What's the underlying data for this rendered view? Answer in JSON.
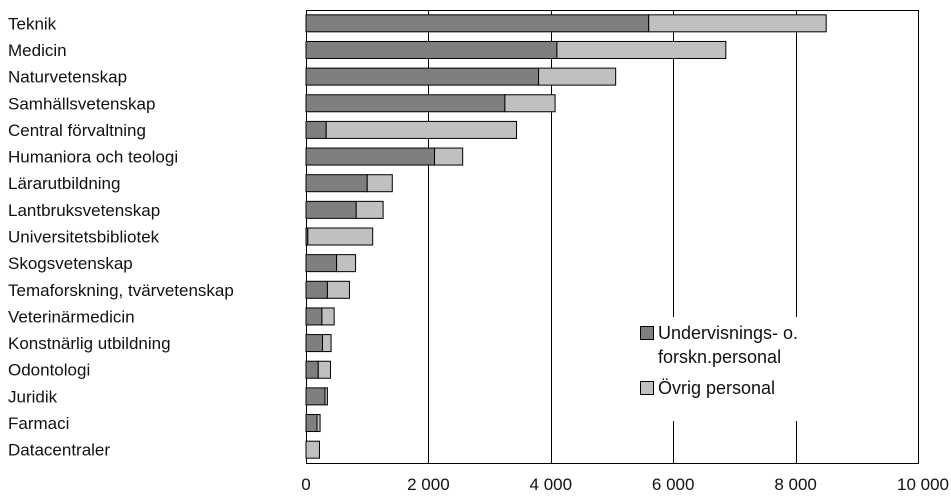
{
  "chart_data": {
    "type": "bar",
    "orientation": "horizontal",
    "stacked": true,
    "categories": [
      "Teknik",
      "Medicin",
      "Naturvetenskap",
      "Samhällsvetenskap",
      "Central förvaltning",
      "Humaniora och teologi",
      "Lärarutbildning",
      "Lantbruksvetenskap",
      "Universitetsbibliotek",
      "Skogsvetenskap",
      "Temaforskning, tvärvetenskap",
      "Veterinärmedicin",
      "Konstnärlig utbildning",
      "Odontologi",
      "Juridik",
      "Farmaci",
      "Datacentraler"
    ],
    "series": [
      {
        "name": "Undervisnings- o. forskn.personal",
        "color": "#7f7f7f",
        "values": [
          5600,
          4100,
          3800,
          3250,
          330,
          2100,
          1000,
          820,
          30,
          500,
          350,
          260,
          270,
          200,
          310,
          180,
          0
        ]
      },
      {
        "name": "Övrig personal",
        "color": "#c0c0c0",
        "values": [
          2900,
          2760,
          1260,
          820,
          3110,
          460,
          410,
          440,
          1060,
          310,
          360,
          200,
          140,
          200,
          40,
          50,
          220
        ]
      }
    ],
    "xlim": [
      0,
      10000
    ],
    "xticks": [
      0,
      2000,
      4000,
      6000,
      8000,
      10000
    ],
    "xtick_labels": [
      "0",
      "2 000",
      "4 000",
      "6 000",
      "8 000",
      "10 000"
    ],
    "grid": "vertical",
    "legend_position": "lower-right",
    "legend_labels": [
      [
        "Undervisnings- o.",
        "forskn.personal"
      ],
      [
        "Övrig personal"
      ]
    ]
  }
}
